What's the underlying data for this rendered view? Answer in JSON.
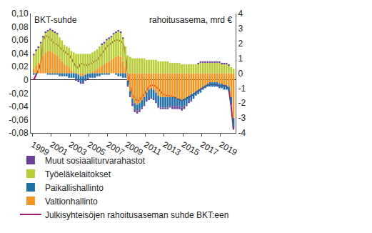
{
  "chart_data": {
    "type": "bar",
    "stacked": true,
    "grid": false,
    "legend": "bottom-left",
    "ylabel": "BKT-suhde",
    "y2label": "rahoitusasema, mrd €",
    "x": [
      1999.125,
      1999.375,
      1999.625,
      1999.875,
      2000.125,
      2000.375,
      2000.625,
      2000.875,
      2001.125,
      2001.375,
      2001.625,
      2001.875,
      2002.125,
      2002.375,
      2002.625,
      2002.875,
      2003.125,
      2003.375,
      2003.625,
      2003.875,
      2004.125,
      2004.375,
      2004.625,
      2004.875,
      2005.125,
      2005.375,
      2005.625,
      2005.875,
      2006.125,
      2006.375,
      2006.625,
      2006.875,
      2007.125,
      2007.375,
      2007.625,
      2007.875,
      2008.125,
      2008.375,
      2008.625,
      2008.875,
      2009.125,
      2009.375,
      2009.625,
      2009.875,
      2010.125,
      2010.375,
      2010.625,
      2010.875,
      2011.125,
      2011.375,
      2011.625,
      2011.875,
      2012.125,
      2012.375,
      2012.625,
      2012.875,
      2013.125,
      2013.375,
      2013.625,
      2013.875,
      2014.125,
      2014.375,
      2014.625,
      2014.875,
      2015.125,
      2015.375,
      2015.625,
      2015.875,
      2016.125,
      2016.375,
      2016.625,
      2016.875,
      2017.125,
      2017.375,
      2017.625,
      2017.875,
      2018.125,
      2018.375,
      2018.625,
      2018.875,
      2019.125,
      2019.375,
      2019.625,
      2019.875,
      2020.125,
      2020.375
    ],
    "xlim": [
      1998.8,
      2020.6
    ],
    "xticks": [
      1999,
      2001,
      2003,
      2005,
      2007,
      2009,
      2011,
      2013,
      2015,
      2017,
      2019
    ],
    "ylim": [
      -0.08,
      0.1
    ],
    "yticks": [
      {
        "value": -0.08,
        "label": "-0,08"
      },
      {
        "value": -0.06,
        "label": "-0,06"
      },
      {
        "value": -0.04,
        "label": "-0,04"
      },
      {
        "value": -0.02,
        "label": "-0,02"
      },
      0,
      {
        "value": 0.02,
        "label": "0,02"
      },
      {
        "value": 0.04,
        "label": "0,04"
      },
      {
        "value": 0.06,
        "label": "0,06"
      },
      {
        "value": 0.08,
        "label": "0,08"
      },
      {
        "value": 0.1,
        "label": "0,10"
      }
    ],
    "y2lim": [
      -4,
      4
    ],
    "y2ticks": [
      -4,
      -3,
      -2,
      -1,
      0,
      1,
      2,
      3,
      4
    ],
    "series": [
      {
        "name": "Valtionhallinto",
        "type": "bar",
        "axis": "y2",
        "color": "#f7941d",
        "values": [
          0.3,
          0.5,
          0.7,
          0.9,
          1.2,
          1.4,
          1.5,
          1.5,
          1.4,
          1.3,
          1.2,
          1.0,
          0.8,
          0.6,
          0.5,
          0.4,
          0.2,
          0.1,
          0.0,
          -0.1,
          -0.2,
          -0.2,
          -0.1,
          0.0,
          0.0,
          0.1,
          0.2,
          0.3,
          0.4,
          0.5,
          0.6,
          0.7,
          0.8,
          0.9,
          1.0,
          1.1,
          1.2,
          1.1,
          0.8,
          0.4,
          -0.5,
          -1.2,
          -1.7,
          -2.0,
          -2.1,
          -2.0,
          -1.8,
          -1.6,
          -1.3,
          -1.1,
          -1.0,
          -1.1,
          -1.3,
          -1.5,
          -1.6,
          -1.6,
          -1.6,
          -1.6,
          -1.6,
          -1.6,
          -1.6,
          -1.7,
          -1.7,
          -1.8,
          -1.7,
          -1.6,
          -1.5,
          -1.4,
          -1.3,
          -1.2,
          -1.1,
          -1.0,
          -0.9,
          -0.8,
          -0.7,
          -0.6,
          -0.6,
          -0.6,
          -0.6,
          -0.7,
          -0.7,
          -0.8,
          -0.8,
          -0.9,
          -1.6,
          -3.0
        ]
      },
      {
        "name": "Paikallishallinto",
        "type": "bar",
        "axis": "y2",
        "color": "#1f6fa9",
        "values": [
          -0.1,
          -0.1,
          0.0,
          0.0,
          0.0,
          0.0,
          -0.1,
          -0.1,
          -0.1,
          -0.1,
          -0.1,
          -0.2,
          -0.2,
          -0.2,
          -0.2,
          -0.3,
          -0.3,
          -0.3,
          -0.4,
          -0.4,
          -0.4,
          -0.4,
          -0.3,
          -0.3,
          -0.3,
          -0.3,
          -0.3,
          -0.2,
          -0.2,
          -0.1,
          -0.1,
          -0.1,
          -0.1,
          0.0,
          0.0,
          -0.1,
          -0.2,
          -0.2,
          -0.3,
          -0.3,
          -0.3,
          -0.3,
          -0.3,
          -0.4,
          -0.4,
          -0.4,
          -0.5,
          -0.5,
          -0.5,
          -0.6,
          -0.6,
          -0.6,
          -0.6,
          -0.7,
          -0.7,
          -0.7,
          -0.7,
          -0.7,
          -0.6,
          -0.6,
          -0.6,
          -0.5,
          -0.5,
          -0.5,
          -0.5,
          -0.5,
          -0.4,
          -0.4,
          -0.4,
          -0.3,
          -0.3,
          -0.3,
          -0.2,
          -0.2,
          -0.2,
          -0.3,
          -0.3,
          -0.3,
          -0.3,
          -0.3,
          -0.3,
          -0.3,
          -0.3,
          -0.3,
          -0.4,
          -0.5
        ]
      },
      {
        "name": "Työeläkelaitokset",
        "type": "bar",
        "axis": "y2",
        "color": "#b8cc33",
        "values": [
          0.9,
          1.0,
          1.0,
          1.1,
          1.2,
          1.3,
          1.3,
          1.4,
          1.4,
          1.4,
          1.4,
          1.4,
          1.4,
          1.3,
          1.3,
          1.3,
          1.3,
          1.3,
          1.3,
          1.3,
          1.3,
          1.3,
          1.3,
          1.3,
          1.3,
          1.3,
          1.3,
          1.3,
          1.4,
          1.4,
          1.4,
          1.5,
          1.5,
          1.5,
          1.6,
          1.6,
          1.6,
          1.6,
          1.5,
          1.4,
          1.2,
          1.1,
          1.0,
          1.0,
          1.0,
          1.0,
          1.0,
          1.0,
          0.9,
          0.9,
          0.9,
          0.9,
          0.9,
          0.8,
          0.8,
          0.8,
          0.8,
          0.8,
          0.7,
          0.7,
          0.7,
          0.7,
          0.7,
          0.6,
          0.6,
          0.6,
          0.6,
          0.6,
          0.6,
          0.6,
          0.6,
          0.7,
          0.7,
          0.7,
          0.7,
          0.7,
          0.7,
          0.7,
          0.7,
          0.7,
          0.6,
          0.6,
          0.6,
          0.5,
          0.4,
          0.3
        ]
      },
      {
        "name": "Muut sosiaaliturvarahastot",
        "type": "bar",
        "axis": "y2",
        "color": "#6b3f92",
        "values": [
          0.1,
          0.1,
          0.1,
          0.1,
          0.1,
          0.1,
          0.1,
          0.1,
          0.1,
          0.1,
          0.1,
          0.0,
          0.0,
          0.0,
          0.0,
          0.0,
          0.0,
          0.0,
          -0.1,
          -0.1,
          -0.1,
          -0.1,
          -0.1,
          -0.1,
          0.0,
          0.0,
          0.0,
          0.0,
          0.0,
          0.1,
          0.1,
          0.1,
          0.1,
          0.1,
          0.1,
          0.1,
          0.1,
          0.1,
          0.1,
          0.0,
          -0.1,
          -0.1,
          -0.2,
          -0.2,
          -0.2,
          -0.2,
          -0.1,
          -0.1,
          -0.1,
          -0.1,
          -0.1,
          -0.1,
          -0.1,
          -0.1,
          -0.1,
          -0.1,
          -0.1,
          -0.1,
          -0.1,
          -0.2,
          -0.2,
          -0.2,
          -0.2,
          -0.2,
          -0.2,
          -0.1,
          -0.1,
          -0.1,
          0.0,
          0.0,
          0.1,
          0.1,
          0.1,
          0.1,
          0.1,
          0.1,
          0.1,
          0.1,
          0.1,
          0.1,
          0.1,
          0.1,
          0.1,
          0.1,
          -0.1,
          -0.2
        ]
      },
      {
        "name": "Julkisyhteisöjen rahoitusaseman suhde BKT:een",
        "type": "line",
        "axis": "y",
        "color": "#a3196f",
        "line_style": "solid",
        "values": [
          0.0,
          0.008,
          0.015,
          0.025,
          0.06,
          0.066,
          0.066,
          0.062,
          0.058,
          0.055,
          0.053,
          0.05,
          0.045,
          0.042,
          0.04,
          0.038,
          0.032,
          0.026,
          0.02,
          0.018,
          0.025,
          0.024,
          0.022,
          0.022,
          0.024,
          0.026,
          0.028,
          0.03,
          0.035,
          0.04,
          0.045,
          0.05,
          0.053,
          0.056,
          0.058,
          0.06,
          0.06,
          0.058,
          0.056,
          0.04,
          0.01,
          -0.01,
          -0.022,
          -0.028,
          -0.032,
          -0.03,
          -0.026,
          -0.021,
          -0.016,
          -0.01,
          -0.008,
          -0.008,
          -0.01,
          -0.014,
          -0.018,
          -0.021,
          -0.023,
          -0.024,
          -0.024,
          -0.025,
          -0.026,
          -0.028,
          -0.03,
          -0.031,
          -0.03,
          -0.028,
          -0.026,
          -0.024,
          -0.022,
          -0.019,
          -0.016,
          -0.014,
          -0.012,
          -0.01,
          -0.008,
          -0.007,
          -0.007,
          -0.007,
          -0.008,
          -0.009,
          -0.009,
          -0.008,
          -0.01,
          -0.014,
          -0.04,
          -0.075
        ]
      }
    ]
  }
}
